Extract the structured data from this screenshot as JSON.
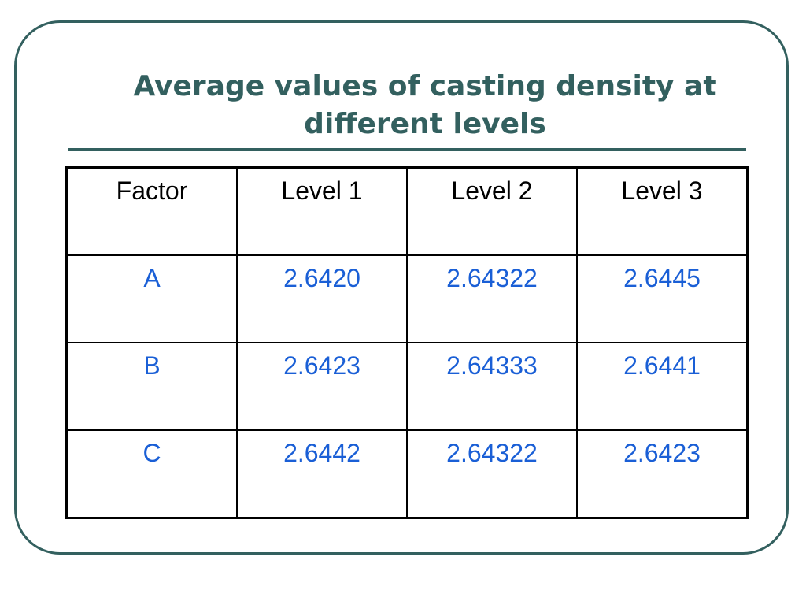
{
  "slide": {
    "title": "Average values of casting density at different levels"
  },
  "table": {
    "headers": [
      "Factor",
      "Level 1",
      "Level 2",
      "Level 3"
    ],
    "rows": [
      {
        "factor": "A",
        "values": [
          "2.6420",
          "2.64322",
          "2.6445"
        ]
      },
      {
        "factor": "B",
        "values": [
          "2.6423",
          "2.64333",
          "2.6441"
        ]
      },
      {
        "factor": "C",
        "values": [
          "2.6442",
          "2.64322",
          "2.6423"
        ]
      }
    ]
  },
  "colors": {
    "accent": "#33605f",
    "cell_value": "#1a5fd6",
    "header_text": "#000000"
  }
}
